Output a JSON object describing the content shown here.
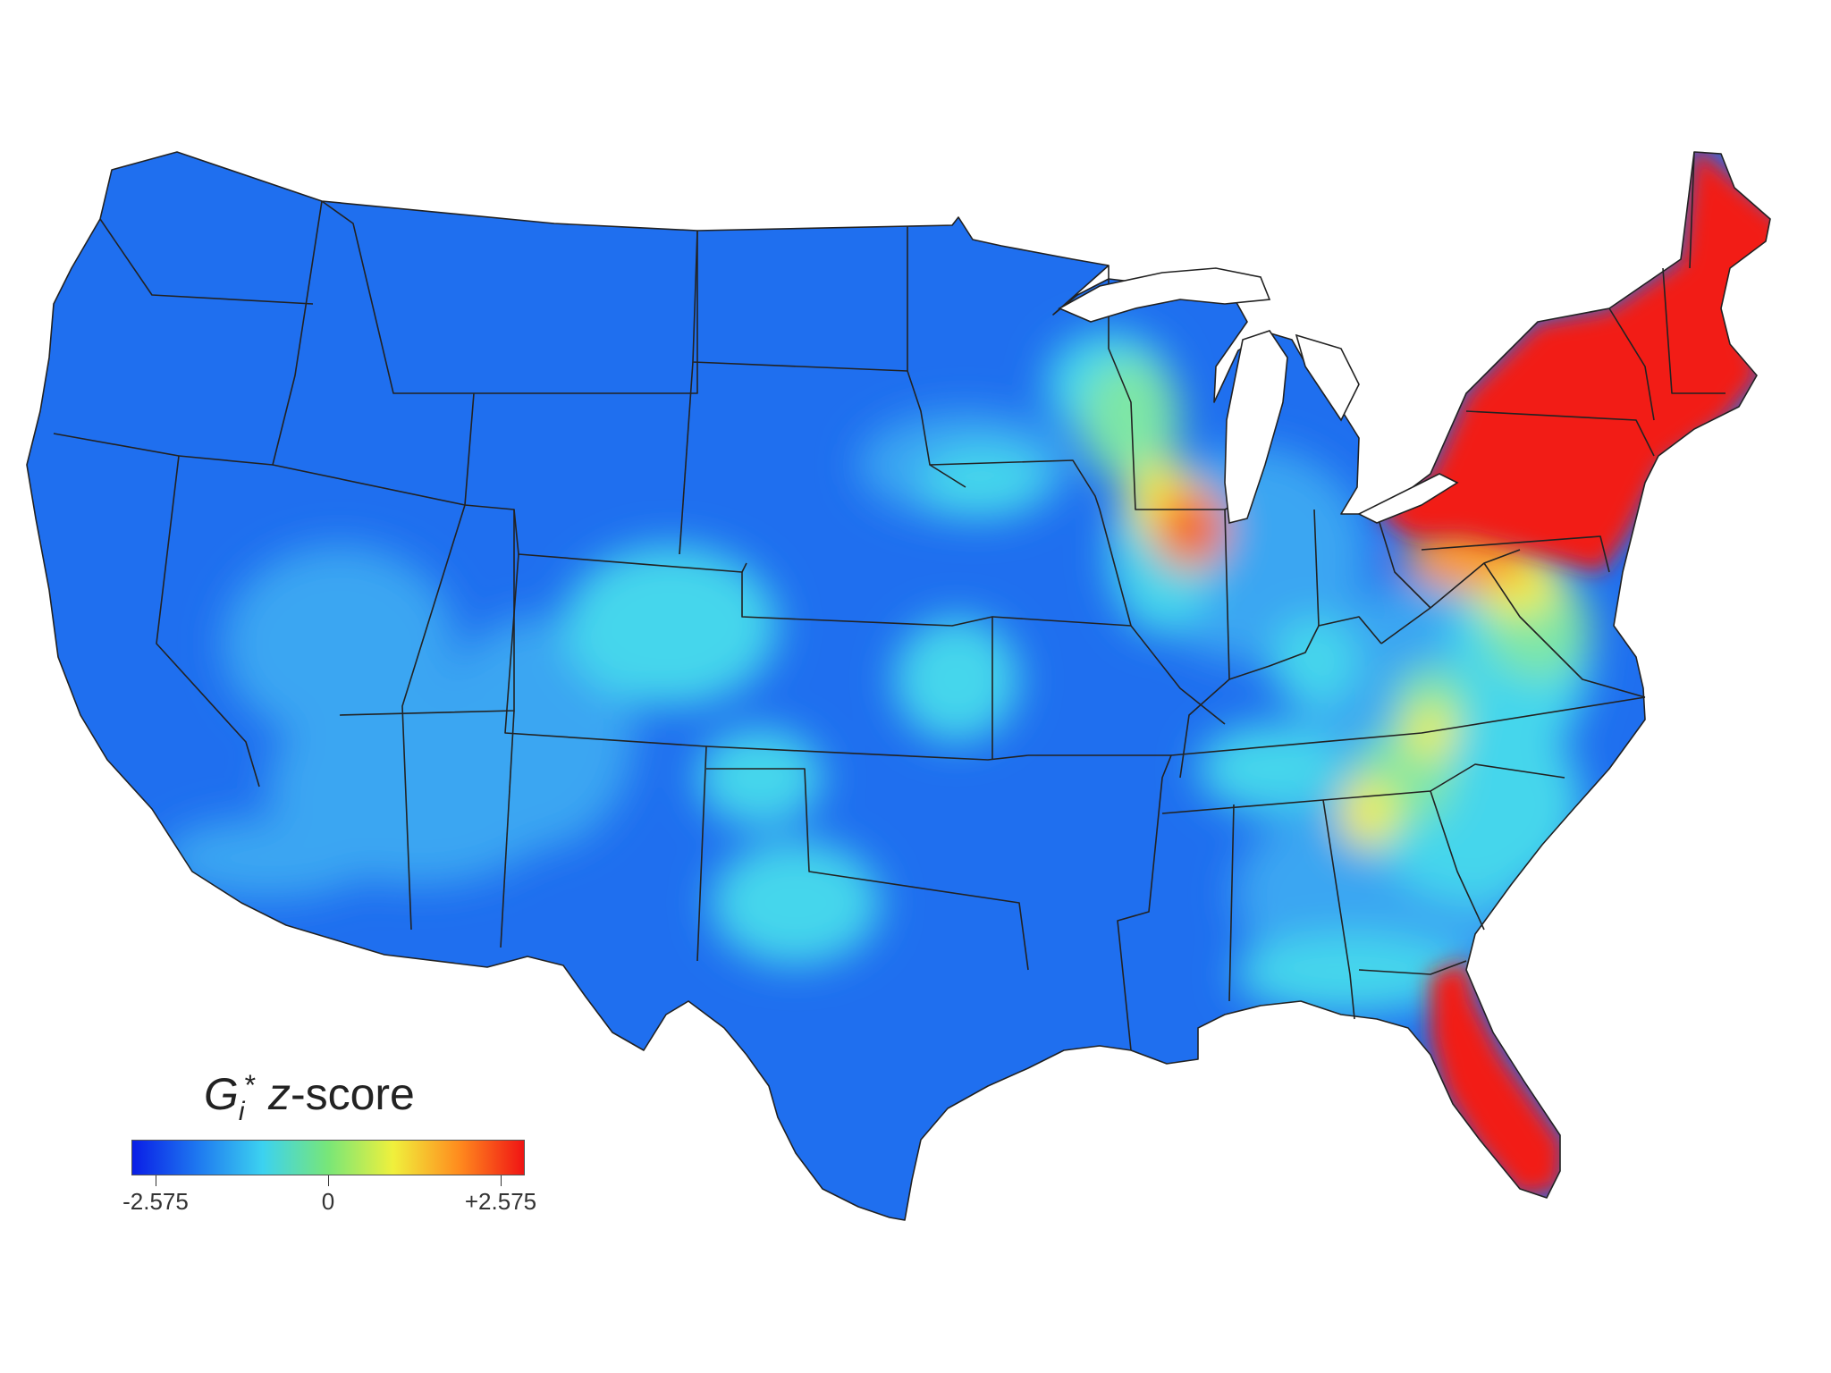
{
  "legend": {
    "title_symbol": "G",
    "title_subscript": "i",
    "title_superscript": "*",
    "title_z": "z",
    "title_rest": "-score",
    "ticks": [
      "-2.575",
      "0",
      "+2.575"
    ],
    "gradient_colors": [
      "#0a1ee6",
      "#1e78f0",
      "#3cd2f0",
      "#78e678",
      "#f0f03c",
      "#ff8c1e",
      "#f01414"
    ]
  },
  "map": {
    "colors": {
      "background": "#ffffff",
      "base_blue": "#1f6fef",
      "light_blue": "#3aa6f2",
      "cyan": "#45d6ec",
      "green_cyan": "#7ee6a6",
      "yellow": "#f0ee48",
      "orange": "#fb9624",
      "hot_red": "#f21b14",
      "border": "#222222"
    }
  }
}
